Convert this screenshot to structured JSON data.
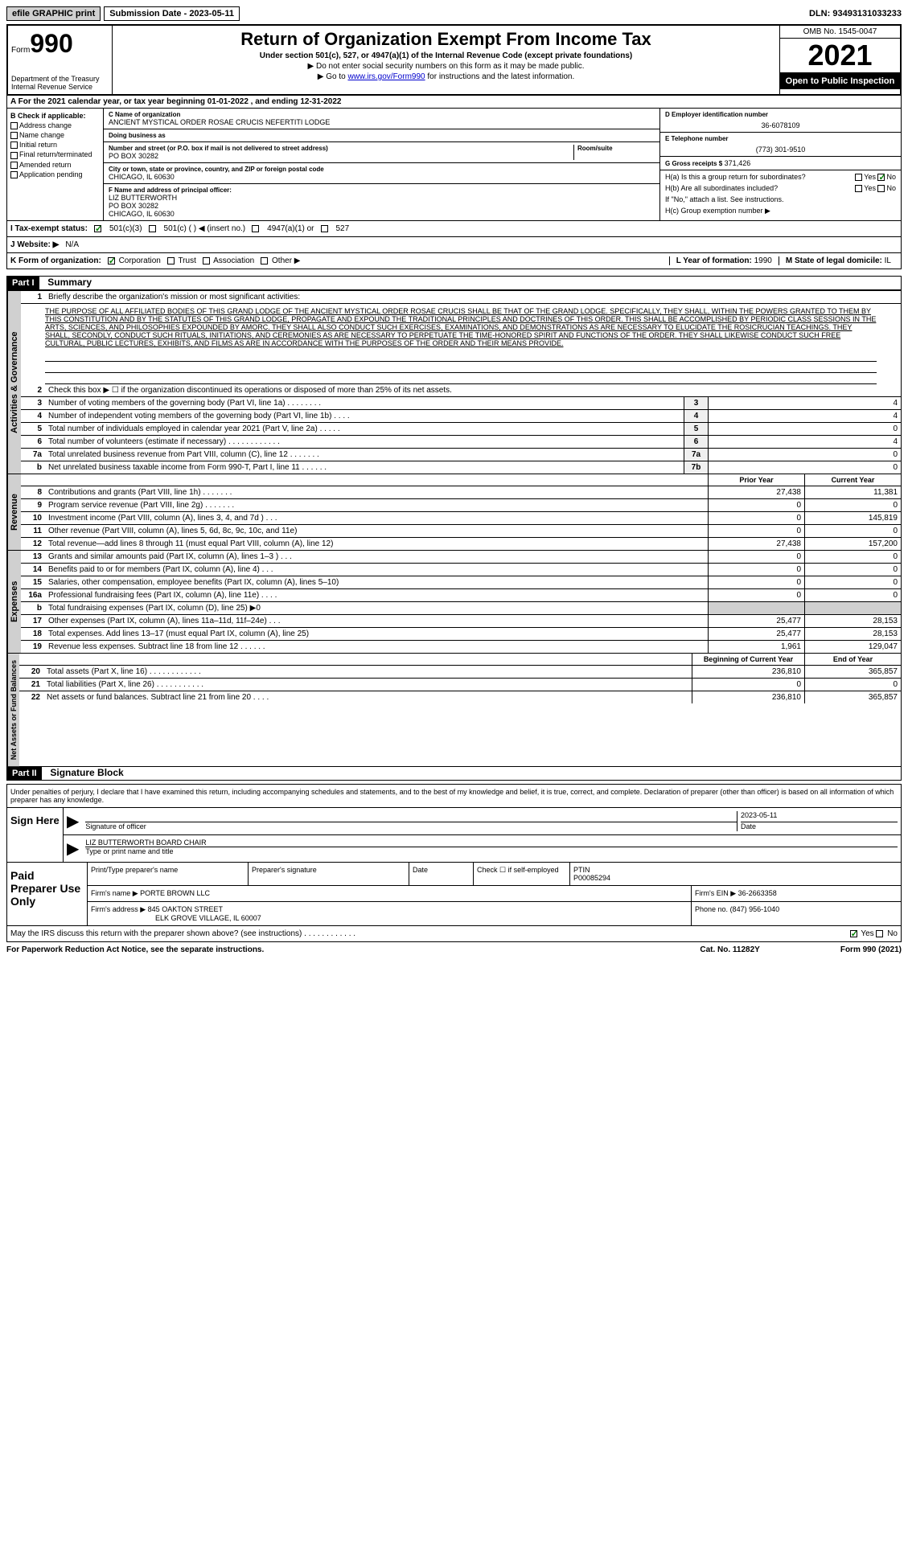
{
  "top": {
    "efile": "efile GRAPHIC print",
    "submission_label": "Submission Date - 2023-05-11",
    "dln": "DLN: 93493131033233"
  },
  "header": {
    "form_prefix": "Form",
    "form_num": "990",
    "dept": "Department of the Treasury Internal Revenue Service",
    "title": "Return of Organization Exempt From Income Tax",
    "subtitle": "Under section 501(c), 527, or 4947(a)(1) of the Internal Revenue Code (except private foundations)",
    "inst1": "▶ Do not enter social security numbers on this form as it may be made public.",
    "inst2_prefix": "▶ Go to ",
    "inst2_link": "www.irs.gov/Form990",
    "inst2_suffix": " for instructions and the latest information.",
    "omb": "OMB No. 1545-0047",
    "year": "2021",
    "open_pub": "Open to Public Inspection"
  },
  "sectionA": "A For the 2021 calendar year, or tax year beginning 01-01-2022   , and ending 12-31-2022",
  "colB": {
    "header": "B Check if applicable:",
    "items": [
      "Address change",
      "Name change",
      "Initial return",
      "Final return/terminated",
      "Amended return",
      "Application pending"
    ]
  },
  "colC": {
    "name_label": "C Name of organization",
    "name": "ANCIENT MYSTICAL ORDER ROSAE CRUCIS NEFERTITI LODGE",
    "dba_label": "Doing business as",
    "addr_label": "Number and street (or P.O. box if mail is not delivered to street address)",
    "addr": "PO BOX 30282",
    "room_label": "Room/suite",
    "city_label": "City or town, state or province, country, and ZIP or foreign postal code",
    "city": "CHICAGO, IL  60630"
  },
  "colD": {
    "label": "D Employer identification number",
    "value": "36-6078109"
  },
  "colE": {
    "label": "E Telephone number",
    "value": "(773) 301-9510"
  },
  "colG": {
    "label": "G Gross receipts $",
    "value": "371,426"
  },
  "colF": {
    "label": "F Name and address of principal officer:",
    "name": "LIZ BUTTERWORTH",
    "addr1": "PO BOX 30282",
    "addr2": "CHICAGO, IL  60630"
  },
  "colH": {
    "ha_label": "H(a)  Is this a group return for subordinates?",
    "hb_label": "H(b)  Are all subordinates included?",
    "hb_note": "If \"No,\" attach a list. See instructions.",
    "hc_label": "H(c)  Group exemption number ▶"
  },
  "taxExempt": {
    "i_label": "I  Tax-exempt status:",
    "opt1": "501(c)(3)",
    "opt2": "501(c) (  ) ◀ (insert no.)",
    "opt3": "4947(a)(1) or",
    "opt4": "527"
  },
  "website": {
    "label": "J  Website: ▶",
    "value": "N/A"
  },
  "kform": {
    "label": "K Form of organization:",
    "opts": [
      "Corporation",
      "Trust",
      "Association",
      "Other ▶"
    ],
    "l_label": "L Year of formation:",
    "l_val": "1990",
    "m_label": "M State of legal domicile:",
    "m_val": "IL"
  },
  "part1": {
    "header": "Part I",
    "title": "Summary",
    "vert_ag": "Activities & Governance",
    "vert_rev": "Revenue",
    "vert_exp": "Expenses",
    "vert_net": "Net Assets or Fund Balances",
    "line1_label": "Briefly describe the organization's mission or most significant activities:",
    "mission": "THE PURPOSE OF ALL AFFILIATED BODIES OF THIS GRAND LODGE OF THE ANCIENT MYSTICAL ORDER ROSAE CRUCIS SHALL BE THAT OF THE GRAND LODGE. SPECIFICALLY, THEY SHALL, WITHIN THE POWERS GRANTED TO THEM BY THIS CONSTITUTION AND BY THE STATUTES OF THIS GRAND LODGE, PROPAGATE AND EXPOUND THE TRADITIONAL PRINCIPLES AND DOCTRINES OF THIS ORDER. THIS SHALL BE ACCOMPLISHED BY PERIODIC CLASS SESSIONS IN THE ARTS, SCIENCES, AND PHILOSOPHIES EXPOUNDED BY AMORC. THEY SHALL ALSO CONDUCT SUCH EXERCISES, EXAMINATIONS, AND DEMONSTRATIONS AS ARE NECESSARY TO ELUCIDATE THE ROSICRUCIAN TEACHINGS. THEY SHALL, SECONDLY, CONDUCT SUCH RITUALS, INITIATIONS, AND CEREMONIES AS ARE NECESSARY TO PERPETUATE THE TIME-HONORED SPIRIT AND FUNCTIONS OF THE ORDER. THEY SHALL LIKEWISE CONDUCT SUCH FREE CULTURAL, PUBLIC LECTURES, EXHIBITS, AND FILMS AS ARE IN ACCORDANCE WITH THE PURPOSES OF THE ORDER AND THEIR MEANS PROVIDE.",
    "line2": "Check this box ▶ ☐ if the organization discontinued its operations or disposed of more than 25% of its net assets.",
    "lines_ag": [
      {
        "num": "3",
        "text": "Number of voting members of the governing body (Part VI, line 1a)   .    .    .    .    .    .    .    .",
        "ref": "3",
        "val": "4"
      },
      {
        "num": "4",
        "text": "Number of independent voting members of the governing body (Part VI, line 1b)   .    .    .    .",
        "ref": "4",
        "val": "4"
      },
      {
        "num": "5",
        "text": "Total number of individuals employed in calendar year 2021 (Part V, line 2a)   .    .    .    .    .",
        "ref": "5",
        "val": "0"
      },
      {
        "num": "6",
        "text": "Total number of volunteers (estimate if necessary)   .    .    .    .    .    .    .    .    .    .    .    .",
        "ref": "6",
        "val": "4"
      },
      {
        "num": "7a",
        "text": "Total unrelated business revenue from Part VIII, column (C), line 12   .    .    .    .    .    .    .",
        "ref": "7a",
        "val": "0"
      },
      {
        "num": "b",
        "text": "Net unrelated business taxable income from Form 990-T, Part I, line 11   .    .    .    .    .    .",
        "ref": "7b",
        "val": "0"
      }
    ],
    "col_prior": "Prior Year",
    "col_current": "Current Year",
    "lines_rev": [
      {
        "num": "8",
        "text": "Contributions and grants (Part VIII, line 1h)   .    .    .    .    .    .    .",
        "prior": "27,438",
        "curr": "11,381"
      },
      {
        "num": "9",
        "text": "Program service revenue (Part VIII, line 2g)   .    .    .    .    .    .    .",
        "prior": "0",
        "curr": "0"
      },
      {
        "num": "10",
        "text": "Investment income (Part VIII, column (A), lines 3, 4, and 7d )   .    .    .",
        "prior": "0",
        "curr": "145,819"
      },
      {
        "num": "11",
        "text": "Other revenue (Part VIII, column (A), lines 5, 6d, 8c, 9c, 10c, and 11e)",
        "prior": "0",
        "curr": "0"
      },
      {
        "num": "12",
        "text": "Total revenue—add lines 8 through 11 (must equal Part VIII, column (A), line 12)",
        "prior": "27,438",
        "curr": "157,200"
      }
    ],
    "lines_exp": [
      {
        "num": "13",
        "text": "Grants and similar amounts paid (Part IX, column (A), lines 1–3 )   .    .    .",
        "prior": "0",
        "curr": "0"
      },
      {
        "num": "14",
        "text": "Benefits paid to or for members (Part IX, column (A), line 4)   .    .    .",
        "prior": "0",
        "curr": "0"
      },
      {
        "num": "15",
        "text": "Salaries, other compensation, employee benefits (Part IX, column (A), lines 5–10)",
        "prior": "0",
        "curr": "0"
      },
      {
        "num": "16a",
        "text": "Professional fundraising fees (Part IX, column (A), line 11e)   .    .    .    .",
        "prior": "0",
        "curr": "0"
      },
      {
        "num": "b",
        "text": "Total fundraising expenses (Part IX, column (D), line 25) ▶0",
        "prior": "",
        "curr": "",
        "shaded": true
      },
      {
        "num": "17",
        "text": "Other expenses (Part IX, column (A), lines 11a–11d, 11f–24e)   .    .    .",
        "prior": "25,477",
        "curr": "28,153"
      },
      {
        "num": "18",
        "text": "Total expenses. Add lines 13–17 (must equal Part IX, column (A), line 25)",
        "prior": "25,477",
        "curr": "28,153"
      },
      {
        "num": "19",
        "text": "Revenue less expenses. Subtract line 18 from line 12   .    .    .    .    .    .",
        "prior": "1,961",
        "curr": "129,047"
      }
    ],
    "col_begin": "Beginning of Current Year",
    "col_end": "End of Year",
    "lines_net": [
      {
        "num": "20",
        "text": "Total assets (Part X, line 16)   .    .    .    .    .    .    .    .    .    .    .    .",
        "prior": "236,810",
        "curr": "365,857"
      },
      {
        "num": "21",
        "text": "Total liabilities (Part X, line 26)   .    .    .    .    .    .    .    .    .    .    .",
        "prior": "0",
        "curr": "0"
      },
      {
        "num": "22",
        "text": "Net assets or fund balances. Subtract line 21 from line 20   .    .    .    .",
        "prior": "236,810",
        "curr": "365,857"
      }
    ]
  },
  "part2": {
    "header": "Part II",
    "title": "Signature Block",
    "declaration": "Under penalties of perjury, I declare that I have examined this return, including accompanying schedules and statements, and to the best of my knowledge and belief, it is true, correct, and complete. Declaration of preparer (other than officer) is based on all information of which preparer has any knowledge.",
    "sign_here": "Sign Here",
    "sig_officer": "Signature of officer",
    "sig_date_label": "Date",
    "sig_date": "2023-05-11",
    "officer_name": "LIZ BUTTERWORTH  BOARD CHAIR",
    "officer_type": "Type or print name and title",
    "paid_prep": "Paid Preparer Use Only",
    "prep_name_label": "Print/Type preparer's name",
    "prep_sig_label": "Preparer's signature",
    "prep_date_label": "Date",
    "prep_check": "Check ☐ if self-employed",
    "ptin_label": "PTIN",
    "ptin": "P00085294",
    "firm_name_label": "Firm's name   ▶",
    "firm_name": "PORTE BROWN LLC",
    "firm_ein_label": "Firm's EIN ▶",
    "firm_ein": "36-2663358",
    "firm_addr_label": "Firm's address ▶",
    "firm_addr": "845 OAKTON STREET",
    "firm_city": "ELK GROVE VILLAGE, IL  60007",
    "phone_label": "Phone no.",
    "phone": "(847) 956-1040",
    "discuss": "May the IRS discuss this return with the preparer shown above? (see instructions)   .    .    .    .    .    .    .    .    .    .    .    .",
    "yes": "Yes",
    "no": "No"
  },
  "footer": {
    "pra": "For Paperwork Reduction Act Notice, see the separate instructions.",
    "cat": "Cat. No. 11282Y",
    "form": "Form 990 (2021)"
  }
}
